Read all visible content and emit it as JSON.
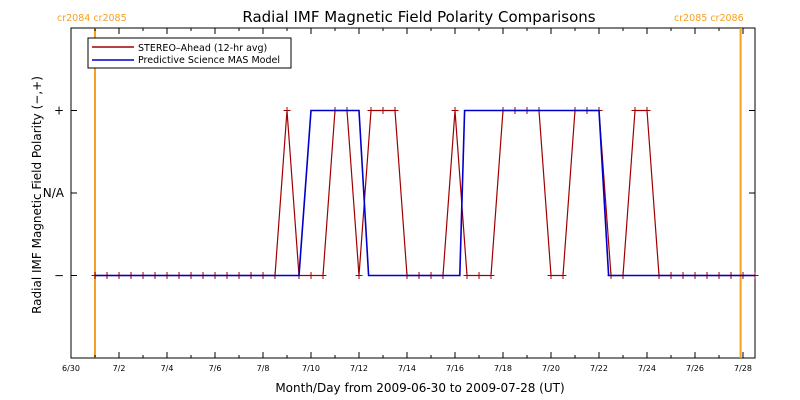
{
  "chart_data": {
    "type": "line",
    "title": "Radial IMF Magnetic Field Polarity Comparisons",
    "xlabel": "Month/Day from 2009-06-30 to 2009-07-28 (UT)",
    "ylabel": "Radial IMF Magnetic Field Polarity (−,+)",
    "x_tick_labels": [
      "6/30",
      "7/2",
      "7/4",
      "7/6",
      "7/8",
      "7/10",
      "7/12",
      "7/14",
      "7/16",
      "7/18",
      "7/20",
      "7/22",
      "7/24",
      "7/26",
      "7/28"
    ],
    "x_tick_days": [
      0,
      2,
      4,
      6,
      8,
      10,
      12,
      14,
      16,
      18,
      20,
      22,
      24,
      26,
      28
    ],
    "xlim": [
      0,
      28.5
    ],
    "y_tick_labels": [
      "−",
      "N/A",
      "+"
    ],
    "y_tick_values": [
      -1,
      0,
      1
    ],
    "ylim": [
      -2,
      2
    ],
    "x_unit": "days since 2009-06-30",
    "carrington_left": "cr2084 cr2085",
    "carrington_right": "cr2085 cr2086",
    "carrington_lines_day": [
      1.0,
      27.9
    ],
    "legend_position": "top-left",
    "series": [
      {
        "name": "STEREO–Ahead (12-hr avg)",
        "color": "#a00000",
        "markers": true,
        "points": [
          [
            1.0,
            -1
          ],
          [
            1.5,
            -1
          ],
          [
            2.0,
            -1
          ],
          [
            2.5,
            -1
          ],
          [
            3.0,
            -1
          ],
          [
            3.5,
            -1
          ],
          [
            4.0,
            -1
          ],
          [
            4.5,
            -1
          ],
          [
            5.0,
            -1
          ],
          [
            5.5,
            -1
          ],
          [
            6.0,
            -1
          ],
          [
            6.5,
            -1
          ],
          [
            7.0,
            -1
          ],
          [
            7.5,
            -1
          ],
          [
            8.0,
            -1
          ],
          [
            8.5,
            -1
          ],
          [
            9.0,
            1
          ],
          [
            9.5,
            -1
          ],
          [
            10.0,
            -1
          ],
          [
            10.5,
            -1
          ],
          [
            11.0,
            1
          ],
          [
            11.5,
            1
          ],
          [
            12.0,
            -1
          ],
          [
            12.5,
            1
          ],
          [
            13.0,
            1
          ],
          [
            13.5,
            1
          ],
          [
            14.0,
            -1
          ],
          [
            14.5,
            -1
          ],
          [
            15.0,
            -1
          ],
          [
            15.5,
            -1
          ],
          [
            16.0,
            1
          ],
          [
            16.5,
            -1
          ],
          [
            17.0,
            -1
          ],
          [
            17.5,
            -1
          ],
          [
            18.0,
            1
          ],
          [
            18.5,
            1
          ],
          [
            19.0,
            1
          ],
          [
            19.5,
            1
          ],
          [
            20.0,
            -1
          ],
          [
            20.5,
            -1
          ],
          [
            21.0,
            1
          ],
          [
            21.5,
            1
          ],
          [
            22.0,
            1
          ],
          [
            22.5,
            -1
          ],
          [
            23.0,
            -1
          ],
          [
            23.5,
            1
          ],
          [
            24.0,
            1
          ],
          [
            24.5,
            -1
          ],
          [
            25.0,
            -1
          ],
          [
            25.5,
            -1
          ],
          [
            26.0,
            -1
          ],
          [
            26.5,
            -1
          ],
          [
            27.0,
            -1
          ],
          [
            27.5,
            -1
          ],
          [
            28.0,
            -1
          ],
          [
            28.5,
            -1
          ]
        ]
      },
      {
        "name": "Predictive Science MAS Model",
        "color": "#0000cc",
        "markers": false,
        "points": [
          [
            1.0,
            -1
          ],
          [
            9.5,
            -1
          ],
          [
            10.0,
            1
          ],
          [
            12.0,
            1
          ],
          [
            12.4,
            -1
          ],
          [
            16.2,
            -1
          ],
          [
            16.4,
            1
          ],
          [
            22.0,
            1
          ],
          [
            22.4,
            -1
          ],
          [
            28.5,
            -1
          ]
        ]
      }
    ]
  }
}
